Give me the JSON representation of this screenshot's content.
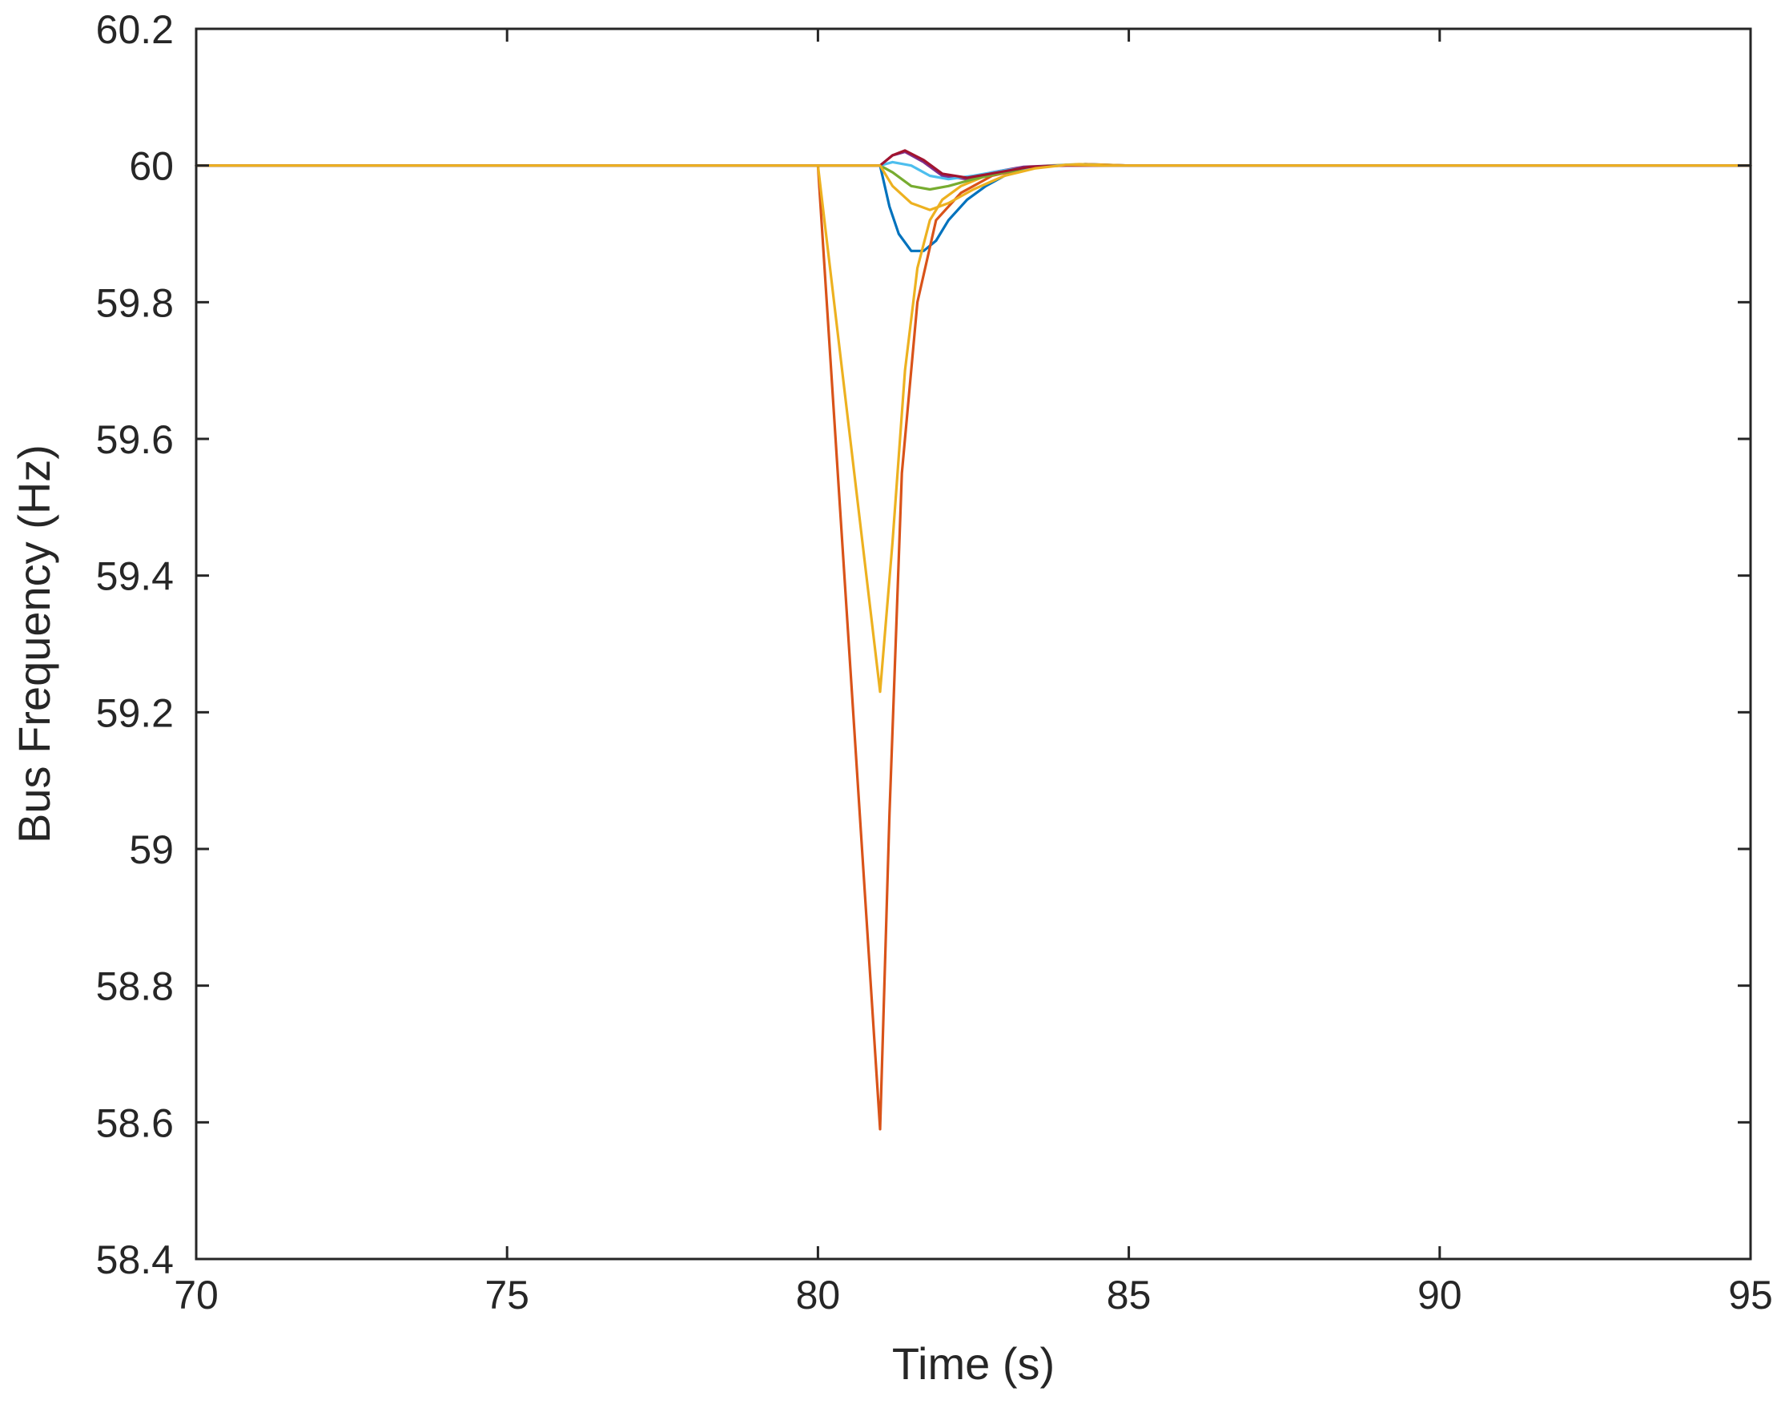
{
  "chart_data": {
    "type": "line",
    "title": "",
    "xlabel": "Time (s)",
    "ylabel": "Bus Frequency (Hz)",
    "xlim": [
      70,
      95
    ],
    "ylim": [
      58.4,
      60.2
    ],
    "xticks": [
      70,
      75,
      80,
      85,
      90,
      95
    ],
    "yticks": [
      58.4,
      58.6,
      58.8,
      59,
      59.2,
      59.4,
      59.6,
      59.8,
      60,
      60.2
    ],
    "grid": false,
    "legend": "none",
    "series": [
      {
        "color": "#0072BD",
        "x": [
          70,
          80,
          81.0,
          81.15,
          81.3,
          81.5,
          81.7,
          81.9,
          82.1,
          82.4,
          82.7,
          83.0,
          83.4,
          83.8,
          84.3,
          85,
          95
        ],
        "y": [
          60.0,
          60.0,
          60.0,
          59.94,
          59.9,
          59.875,
          59.875,
          59.89,
          59.92,
          59.95,
          59.97,
          59.985,
          59.995,
          60.0,
          60.002,
          60.0,
          60.0
        ]
      },
      {
        "color": "#D95319",
        "x": [
          70,
          80.0,
          81.0,
          81.15,
          81.35,
          81.6,
          81.9,
          82.3,
          82.8,
          83.3,
          83.8,
          84.3,
          85,
          95
        ],
        "y": [
          60.0,
          60.0,
          58.59,
          59.05,
          59.55,
          59.8,
          59.92,
          59.96,
          59.985,
          59.995,
          60.0,
          60.002,
          60.0,
          60.0
        ]
      },
      {
        "color": "#EDB120",
        "x": [
          70,
          80.0,
          81.0,
          81.2,
          81.4,
          81.6,
          81.8,
          82.0,
          82.3,
          82.7,
          83.2,
          83.7,
          84.2,
          85,
          95
        ],
        "y": [
          60.0,
          60.0,
          59.23,
          59.45,
          59.7,
          59.85,
          59.92,
          59.95,
          59.97,
          59.985,
          59.995,
          60.0,
          60.002,
          60.0,
          60.0
        ]
      },
      {
        "color": "#7E2F8E",
        "x": [
          70,
          80,
          81.0,
          81.2,
          81.4,
          81.7,
          82.0,
          82.4,
          82.8,
          83.3,
          83.8,
          84.5,
          95
        ],
        "y": [
          60.0,
          60.0,
          60.0,
          60.015,
          60.02,
          60.005,
          59.985,
          59.98,
          59.99,
          59.998,
          60.0,
          60.0,
          60.0
        ]
      },
      {
        "color": "#77AC30",
        "x": [
          70,
          80,
          81.0,
          81.2,
          81.5,
          81.8,
          82.1,
          82.5,
          83.0,
          83.5,
          84.0,
          84.6,
          95
        ],
        "y": [
          60.0,
          60.0,
          60.0,
          59.99,
          59.97,
          59.965,
          59.97,
          59.98,
          59.99,
          59.997,
          60.001,
          60.0,
          60.0
        ]
      },
      {
        "color": "#4DBEEE",
        "x": [
          70,
          80,
          81.0,
          81.2,
          81.5,
          81.8,
          82.1,
          82.5,
          83.0,
          83.5,
          84.0,
          84.6,
          95
        ],
        "y": [
          60.0,
          60.0,
          60.0,
          60.005,
          60.0,
          59.985,
          59.98,
          59.985,
          59.993,
          59.998,
          60.001,
          60.0,
          60.0
        ]
      },
      {
        "color": "#A2142F",
        "x": [
          70,
          80,
          81.0,
          81.2,
          81.4,
          81.7,
          82.0,
          82.4,
          82.9,
          83.4,
          84.0,
          84.6,
          95
        ],
        "y": [
          60.0,
          60.0,
          60.0,
          60.015,
          60.022,
          60.008,
          59.988,
          59.982,
          59.99,
          59.998,
          60.0,
          60.0,
          60.0
        ]
      },
      {
        "color": "#EDB120",
        "x": [
          70,
          80,
          81.0,
          81.2,
          81.5,
          81.8,
          82.1,
          82.5,
          83.0,
          83.5,
          84.0,
          84.6,
          95
        ],
        "y": [
          60.0,
          60.0,
          60.0,
          59.97,
          59.945,
          59.935,
          59.945,
          59.965,
          59.985,
          59.996,
          60.001,
          60.0,
          60.0
        ]
      }
    ]
  }
}
